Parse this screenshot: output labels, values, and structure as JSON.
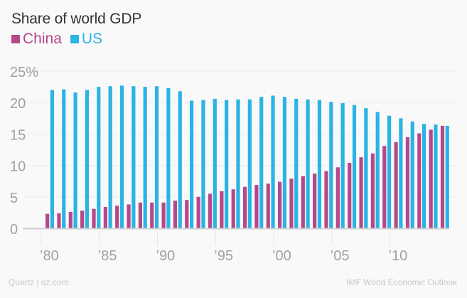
{
  "chart_data": {
    "type": "bar",
    "title": "Share of world GDP",
    "xlabel": "",
    "ylabel": "",
    "ylim": [
      0,
      25
    ],
    "yticks": [
      0,
      5,
      10,
      15,
      20,
      25
    ],
    "ytick_labels": [
      "0",
      "5",
      "10",
      "15",
      "20",
      "25%"
    ],
    "xtick_years": [
      1980,
      1985,
      1990,
      1995,
      2000,
      2005,
      2010
    ],
    "xtick_labels": [
      "’80",
      "’85",
      "’90",
      "’95",
      "’00",
      "’05",
      "’10"
    ],
    "grid": true,
    "legend_position": "top-left",
    "categories": [
      1980,
      1981,
      1982,
      1983,
      1984,
      1985,
      1986,
      1987,
      1988,
      1989,
      1990,
      1991,
      1992,
      1993,
      1994,
      1995,
      1996,
      1997,
      1998,
      1999,
      2000,
      2001,
      2002,
      2003,
      2004,
      2005,
      2006,
      2007,
      2008,
      2009,
      2010,
      2011,
      2012,
      2013,
      2014
    ],
    "series": [
      {
        "name": "China",
        "color": "#b5488a",
        "values": [
          2.3,
          2.4,
          2.6,
          2.8,
          3.1,
          3.4,
          3.6,
          3.8,
          4.1,
          4.1,
          4.1,
          4.4,
          4.5,
          5.0,
          5.5,
          5.9,
          6.2,
          6.6,
          6.9,
          7.1,
          7.4,
          7.9,
          8.3,
          8.7,
          9.1,
          9.7,
          10.4,
          11.3,
          11.9,
          13.1,
          13.7,
          14.5,
          15.1,
          15.7,
          16.3
        ]
      },
      {
        "name": "US",
        "color": "#2bb3e4",
        "values": [
          22.0,
          22.1,
          21.6,
          22.0,
          22.5,
          22.6,
          22.7,
          22.6,
          22.5,
          22.6,
          22.3,
          21.8,
          20.3,
          20.4,
          20.6,
          20.4,
          20.5,
          20.5,
          20.9,
          21.1,
          20.9,
          20.6,
          20.5,
          20.4,
          20.1,
          19.9,
          19.6,
          19.1,
          18.5,
          17.9,
          17.5,
          17.0,
          16.6,
          16.5,
          16.3
        ]
      }
    ]
  },
  "footer": {
    "source_left": "Quartz | qz.com",
    "source_right": "IMF World Economic Outlook"
  }
}
